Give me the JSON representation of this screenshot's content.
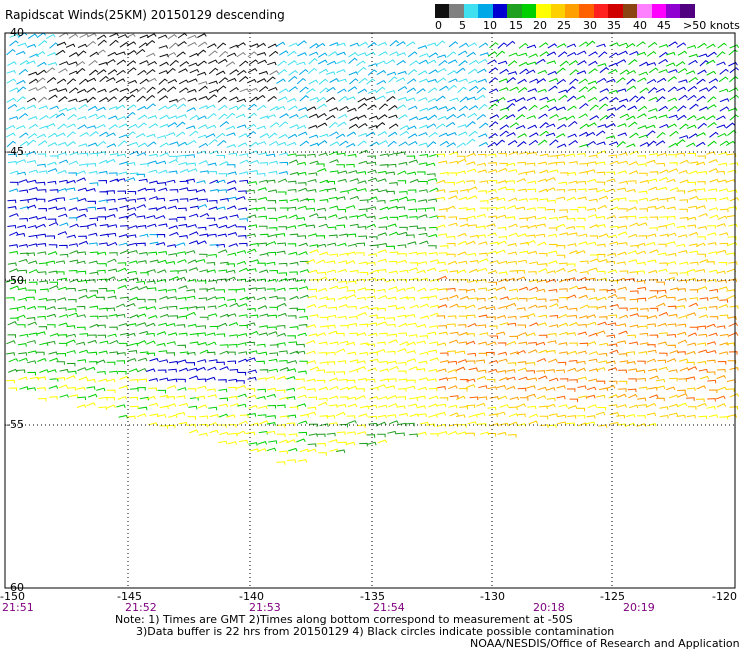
{
  "title": "Rapidscat Winds(25KM) 20150129 descending",
  "colorbar": {
    "labels": [
      "0",
      "5",
      "10",
      "15",
      "20",
      "25",
      "30",
      "35",
      "40",
      "45",
      ">50 knots"
    ],
    "colors": [
      "#101010",
      "#808080",
      "#40e0f0",
      "#00a8e8",
      "#0000d0",
      "#20a020",
      "#00d000",
      "#ffff00",
      "#ffd000",
      "#ffa000",
      "#ff6000",
      "#ff2020",
      "#d00000",
      "#8b4513",
      "#ff80ff",
      "#ff00ff",
      "#9000d0",
      "#500080"
    ]
  },
  "axes": {
    "lat_labels": [
      "-40",
      "-45",
      "-50",
      "-55",
      "-60"
    ],
    "lon_labels": [
      "-150",
      "-145",
      "-140",
      "-135",
      "-130",
      "-125",
      "-120"
    ]
  },
  "times": [
    "21:51",
    "21:52",
    "21:53",
    "21:54",
    "20:18",
    "20:19"
  ],
  "notes": {
    "line1": "Note: 1) Times are GMT 2)Times along bottom correspond to measurement at -50S",
    "line2": "      3)Data buffer is 22 hrs from 20150129 4) Black circles indicate possible contamination"
  },
  "credit": "NOAA/NESDIS/Office of Research and Applications"
}
